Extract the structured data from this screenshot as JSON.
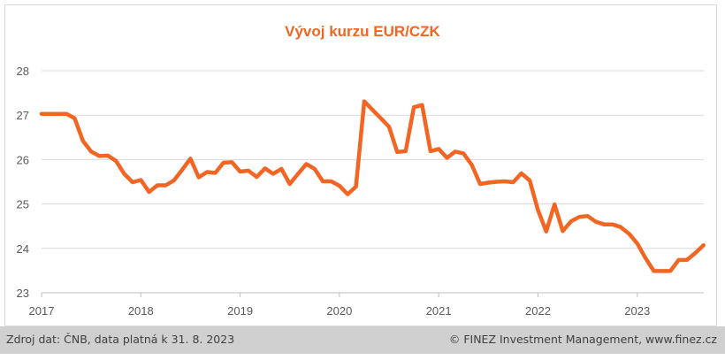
{
  "chart_data": {
    "type": "line",
    "title": "Vývoj kurzu EUR/CZK",
    "xlabel": "",
    "ylabel": "",
    "xlim": [
      2017.0,
      2023.67
    ],
    "ylim": [
      23,
      28
    ],
    "yticks": [
      "23",
      "24",
      "25",
      "26",
      "27",
      "28"
    ],
    "xticks": [
      "2017",
      "2018",
      "2019",
      "2020",
      "2021",
      "2022",
      "2023"
    ],
    "grid": true,
    "line_color": "#f26522",
    "series": [
      {
        "x": [
          2017.0,
          2017.083,
          2017.167,
          2017.25,
          2017.333,
          2017.417,
          2017.5,
          2017.583,
          2017.667,
          2017.75,
          2017.833,
          2017.917,
          2018.0,
          2018.083,
          2018.167,
          2018.25,
          2018.333,
          2018.417,
          2018.5,
          2018.583,
          2018.667,
          2018.75,
          2018.833,
          2018.917,
          2019.0,
          2019.083,
          2019.167,
          2019.25,
          2019.333,
          2019.417,
          2019.5,
          2019.583,
          2019.667,
          2019.75,
          2019.833,
          2019.917,
          2020.0,
          2020.083,
          2020.167,
          2020.25,
          2020.333,
          2020.417,
          2020.5,
          2020.583,
          2020.667,
          2020.75,
          2020.833,
          2020.917,
          2021.0,
          2021.083,
          2021.167,
          2021.25,
          2021.333,
          2021.417,
          2021.5,
          2021.583,
          2021.667,
          2021.75,
          2021.833,
          2021.917,
          2022.0,
          2022.083,
          2022.167,
          2022.25,
          2022.333,
          2022.417,
          2022.5,
          2022.583,
          2022.667,
          2022.75,
          2022.833,
          2022.917,
          2023.0,
          2023.083,
          2023.167,
          2023.25,
          2023.333,
          2023.417,
          2023.5,
          2023.583,
          2023.667
        ],
        "values": [
          27.03,
          27.03,
          27.03,
          27.03,
          26.93,
          26.42,
          26.18,
          26.08,
          26.09,
          25.97,
          25.68,
          25.49,
          25.54,
          25.27,
          25.42,
          25.42,
          25.53,
          25.77,
          26.02,
          25.6,
          25.72,
          25.7,
          25.93,
          25.94,
          25.73,
          25.75,
          25.61,
          25.8,
          25.68,
          25.79,
          25.45,
          25.68,
          25.9,
          25.79,
          25.51,
          25.51,
          25.41,
          25.22,
          25.39,
          27.31,
          27.12,
          26.93,
          26.74,
          26.17,
          26.19,
          27.18,
          27.23,
          26.19,
          26.24,
          26.04,
          26.18,
          26.14,
          25.88,
          25.45,
          25.48,
          25.5,
          25.51,
          25.49,
          25.69,
          25.53,
          24.86,
          24.38,
          24.99,
          24.39,
          24.61,
          24.71,
          24.73,
          24.6,
          24.54,
          24.54,
          24.48,
          24.33,
          24.11,
          23.78,
          23.49,
          23.49,
          23.49,
          23.74,
          23.74,
          23.89,
          24.07
        ]
      }
    ]
  },
  "footer": {
    "source": "Zdroj dat: ČNB, data platná k 31. 8. 2023",
    "credit": "© FINEZ Investment Management, www.finez.cz"
  }
}
